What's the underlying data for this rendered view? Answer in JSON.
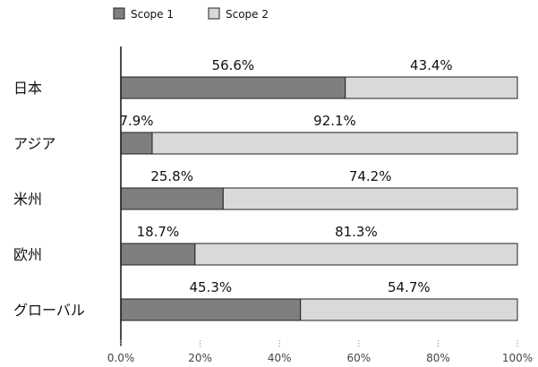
{
  "chart_data": {
    "type": "bar",
    "orientation": "horizontal",
    "stacked": true,
    "percent": true,
    "title": "",
    "xlabel": "",
    "ylabel": "",
    "categories": [
      "日本",
      "アジア",
      "米州",
      "欧州",
      "グローバル"
    ],
    "series": [
      {
        "name": "Scope 1",
        "color": "#7f7f7f",
        "values": [
          56.6,
          7.9,
          25.8,
          18.7,
          45.3
        ],
        "labels": [
          "56.6%",
          "7.9%",
          "25.8%",
          "18.7%",
          "45.3%"
        ]
      },
      {
        "name": "Scope 2",
        "color": "#d9d9d9",
        "values": [
          43.4,
          92.1,
          74.2,
          81.3,
          54.7
        ],
        "labels": [
          "43.4%",
          "92.1%",
          "74.2%",
          "81.3%",
          "54.7%"
        ]
      }
    ],
    "xlim": [
      0,
      100
    ],
    "x_ticks": [
      "0.0%",
      "20%",
      "40%",
      "60%",
      "80%",
      "100%"
    ],
    "legend_position": "top",
    "grid": false
  }
}
